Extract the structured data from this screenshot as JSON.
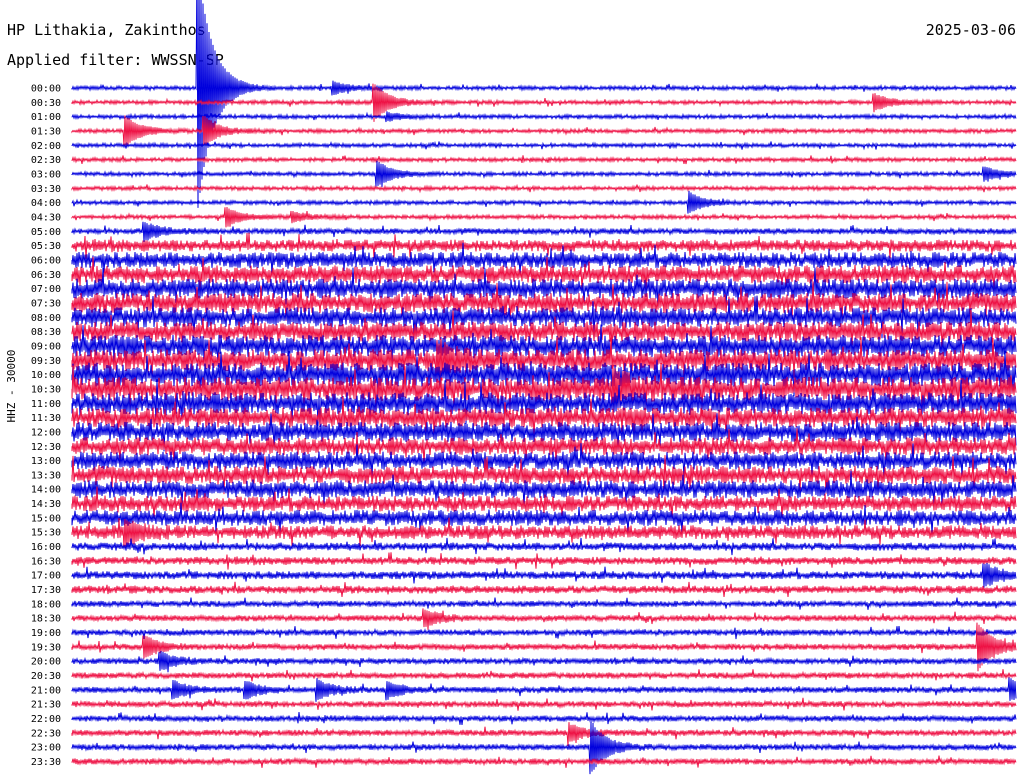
{
  "header": {
    "station": "HP Lithakia, Zakinthos",
    "filter": "Applied filter: WWSSN-SP",
    "date": "2025-03-06"
  },
  "channel_label": "HHZ - 30000",
  "colors": {
    "even_rows": "#0000dd",
    "odd_rows": "#ee1144"
  },
  "chart_data": {
    "type": "line",
    "title": "HP Lithakia, Zakinthos",
    "subtitle": "Applied filter: WWSSN-SP",
    "ylabel": "HHZ - 30000",
    "row_labels": [
      "00:00",
      "00:30",
      "01:00",
      "01:30",
      "02:00",
      "02:30",
      "03:00",
      "03:30",
      "04:00",
      "04:30",
      "05:00",
      "05:30",
      "06:00",
      "06:30",
      "07:00",
      "07:30",
      "08:00",
      "08:30",
      "09:00",
      "09:30",
      "10:00",
      "10:30",
      "11:00",
      "11:30",
      "12:00",
      "12:30",
      "13:00",
      "13:30",
      "14:00",
      "14:30",
      "15:00",
      "15:30",
      "16:00",
      "16:30",
      "17:00",
      "17:30",
      "18:00",
      "18:30",
      "19:00",
      "19:30",
      "20:00",
      "20:30",
      "21:00",
      "21:30",
      "22:00",
      "22:30",
      "23:00",
      "23:30"
    ],
    "noise_level": [
      2,
      2,
      2,
      2,
      2,
      2,
      2,
      2,
      2,
      2,
      3,
      6,
      8,
      9,
      10,
      10,
      10,
      10,
      11,
      11,
      12,
      12,
      11,
      10,
      10,
      9,
      9,
      9,
      9,
      8,
      8,
      7,
      4,
      4,
      4,
      4,
      3,
      3,
      3,
      3,
      3,
      3,
      3,
      3,
      3,
      3,
      3,
      3
    ],
    "events": [
      {
        "row": 0,
        "minute": 8.3,
        "amp": 6
      },
      {
        "row": 0,
        "minute": 4.0,
        "amp": 120
      },
      {
        "row": 1,
        "minute": 25.5,
        "amp": 8
      },
      {
        "row": 1,
        "minute": 9.6,
        "amp": 18
      },
      {
        "row": 2,
        "minute": 10.0,
        "amp": 4
      },
      {
        "row": 3,
        "minute": 1.7,
        "amp": 14
      },
      {
        "row": 3,
        "minute": 4.2,
        "amp": 14
      },
      {
        "row": 6,
        "minute": 9.7,
        "amp": 12
      },
      {
        "row": 6,
        "minute": 29.0,
        "amp": 6
      },
      {
        "row": 8,
        "minute": 19.6,
        "amp": 10
      },
      {
        "row": 9,
        "minute": 4.9,
        "amp": 9
      },
      {
        "row": 9,
        "minute": 7.0,
        "amp": 5
      },
      {
        "row": 10,
        "minute": 2.3,
        "amp": 8
      },
      {
        "row": 19,
        "minute": 11.6,
        "amp": 14
      },
      {
        "row": 21,
        "minute": 17.2,
        "amp": 14
      },
      {
        "row": 31,
        "minute": 1.7,
        "amp": 10
      },
      {
        "row": 34,
        "minute": 29.0,
        "amp": 10
      },
      {
        "row": 37,
        "minute": 11.2,
        "amp": 8
      },
      {
        "row": 39,
        "minute": 2.3,
        "amp": 10
      },
      {
        "row": 39,
        "minute": 28.8,
        "amp": 22
      },
      {
        "row": 40,
        "minute": 2.8,
        "amp": 8
      },
      {
        "row": 42,
        "minute": 3.2,
        "amp": 8
      },
      {
        "row": 42,
        "minute": 5.5,
        "amp": 8
      },
      {
        "row": 42,
        "minute": 7.8,
        "amp": 9
      },
      {
        "row": 42,
        "minute": 10.0,
        "amp": 8
      },
      {
        "row": 42,
        "minute": 29.8,
        "amp": 10
      },
      {
        "row": 45,
        "minute": 15.8,
        "amp": 8
      },
      {
        "row": 46,
        "minute": 16.5,
        "amp": 24
      }
    ]
  }
}
